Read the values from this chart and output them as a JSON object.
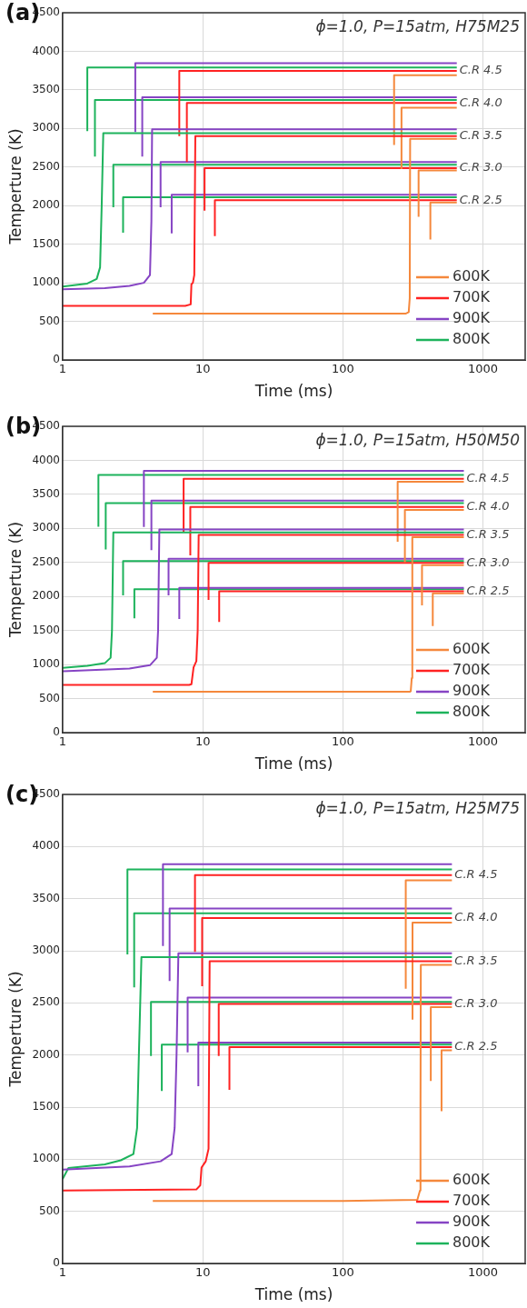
{
  "chart_data": [
    {
      "type": "line",
      "title": "(a)",
      "subtitle": "ϕ=1.0, P=15atm, H75M25",
      "xlabel": "Time (ms)",
      "ylabel": "Temperture (K)",
      "log": "x",
      "grid": true,
      "legend": "bottom right",
      "xlim": [
        1,
        2000
      ],
      "xticks": [
        1,
        10,
        100,
        1000
      ],
      "ylim": [
        0,
        4500
      ],
      "yticks": [
        0,
        500,
        1000,
        1500,
        2000,
        2500,
        3000,
        3500,
        4000,
        4500
      ],
      "annotations": [
        {
          "text": "C.R 4.5",
          "x": 650,
          "y": 3745
        },
        {
          "text": "C.R 4.0",
          "x": 650,
          "y": 3330
        },
        {
          "text": "C.R 3.5",
          "x": 650,
          "y": 2900
        },
        {
          "text": "C.R 3.0",
          "x": 650,
          "y": 2485
        },
        {
          "text": "C.R 2.5",
          "x": 650,
          "y": 2070
        }
      ],
      "series": [
        {
          "name": "600K",
          "color": "#f5883c",
          "x": [
            4.4,
            100,
            280,
            295,
            300,
            302,
            650
          ],
          "values": [
            600,
            600,
            600,
            620,
            800,
            2865,
            2865
          ]
        },
        {
          "name": "700K",
          "color": "#ff2222",
          "x": [
            1,
            7.5,
            8.2,
            8.3,
            8.5,
            8.7,
            8.85,
            650
          ],
          "values": [
            700,
            700,
            720,
            980,
            1000,
            1100,
            2900,
            2900
          ]
        },
        {
          "name": "900K",
          "color": "#8644c4",
          "x": [
            1,
            2,
            3,
            3.8,
            4.2,
            4.3,
            4.35,
            650
          ],
          "values": [
            915,
            930,
            960,
            1000,
            1100,
            1800,
            2990,
            2990
          ]
        },
        {
          "name": "800K",
          "color": "#1db35c",
          "x": [
            1,
            1.5,
            1.75,
            1.85,
            1.9,
            1.95,
            650
          ],
          "values": [
            950,
            990,
            1050,
            1200,
            2000,
            2940,
            2940
          ]
        },
        {
          "color": "#f5883c",
          "x": [
            232,
            232,
            650
          ],
          "values": [
            2785,
            3690,
            3690
          ]
        },
        {
          "color": "#f5883c",
          "x": [
            262,
            262,
            650
          ],
          "values": [
            2475,
            3270,
            3270
          ]
        },
        {
          "color": "#f5883c",
          "x": [
            347,
            347,
            650
          ],
          "values": [
            1855,
            2455,
            2455
          ]
        },
        {
          "color": "#f5883c",
          "x": [
            421,
            421,
            650
          ],
          "values": [
            1560,
            2040,
            2040
          ]
        },
        {
          "color": "#ff2222",
          "x": [
            6.8,
            6.8,
            650
          ],
          "values": [
            2900,
            3745,
            3745
          ]
        },
        {
          "color": "#ff2222",
          "x": [
            7.7,
            7.7,
            650
          ],
          "values": [
            2565,
            3330,
            3330
          ]
        },
        {
          "color": "#ff2222",
          "x": [
            10.3,
            10.3,
            650
          ],
          "values": [
            1935,
            2485,
            2485
          ]
        },
        {
          "color": "#ff2222",
          "x": [
            12.2,
            12.2,
            650
          ],
          "values": [
            1605,
            2070,
            2070
          ]
        },
        {
          "color": "#8644c4",
          "x": [
            3.3,
            3.3,
            650
          ],
          "values": [
            2955,
            3845,
            3845
          ]
        },
        {
          "color": "#8644c4",
          "x": [
            3.7,
            3.7,
            650
          ],
          "values": [
            2635,
            3405,
            3405
          ]
        },
        {
          "color": "#8644c4",
          "x": [
            5.0,
            5.0,
            650
          ],
          "values": [
            1980,
            2565,
            2565
          ]
        },
        {
          "color": "#8644c4",
          "x": [
            6.0,
            6.0,
            650
          ],
          "values": [
            1640,
            2140,
            2140
          ]
        },
        {
          "color": "#1db35c",
          "x": [
            1.5,
            1.5,
            650
          ],
          "values": [
            2965,
            3790,
            3790
          ]
        },
        {
          "color": "#1db35c",
          "x": [
            1.7,
            1.7,
            650
          ],
          "values": [
            2635,
            3370,
            3370
          ]
        },
        {
          "color": "#1db35c",
          "x": [
            2.3,
            2.3,
            650
          ],
          "values": [
            1980,
            2530,
            2530
          ]
        },
        {
          "color": "#1db35c",
          "x": [
            2.7,
            2.7,
            650
          ],
          "values": [
            1650,
            2110,
            2110
          ]
        }
      ]
    },
    {
      "type": "line",
      "title": "(b)",
      "subtitle": "ϕ=1.0, P=15atm, H50M50",
      "xlabel": "Time (ms)",
      "ylabel": "Temperture (K)",
      "log": "x",
      "grid": true,
      "legend": "bottom right",
      "xlim": [
        1,
        2000
      ],
      "xticks": [
        1,
        10,
        100,
        1000
      ],
      "ylim": [
        0,
        4500
      ],
      "yticks": [
        0,
        500,
        1000,
        1500,
        2000,
        2500,
        3000,
        3500,
        4000,
        4500
      ],
      "annotations": [
        {
          "text": "C.R 4.5",
          "x": 730,
          "y": 3730
        },
        {
          "text": "C.R 4.0",
          "x": 730,
          "y": 3315
        },
        {
          "text": "C.R 3.5",
          "x": 730,
          "y": 2905
        },
        {
          "text": "C.R 3.0",
          "x": 730,
          "y": 2495
        },
        {
          "text": "C.R 2.5",
          "x": 730,
          "y": 2075
        }
      ],
      "series": [
        {
          "name": "600K",
          "color": "#f5883c",
          "x": [
            4.4,
            100,
            300,
            305,
            310,
            313,
            730
          ],
          "values": [
            600,
            600,
            600,
            610,
            800,
            2870,
            2870
          ]
        },
        {
          "name": "700K",
          "color": "#ff2222",
          "x": [
            1,
            8,
            8.3,
            8.6,
            9.0,
            9.2,
            9.35,
            730
          ],
          "values": [
            700,
            700,
            710,
            960,
            1050,
            1500,
            2905,
            2905
          ]
        },
        {
          "name": "900K",
          "color": "#8644c4",
          "x": [
            1,
            3,
            4.2,
            4.7,
            4.8,
            4.9,
            730
          ],
          "values": [
            900,
            940,
            990,
            1100,
            1500,
            2985,
            2985
          ]
        },
        {
          "name": "800K",
          "color": "#1db35c",
          "x": [
            1,
            1.5,
            2.0,
            2.2,
            2.25,
            2.3,
            730
          ],
          "values": [
            950,
            980,
            1020,
            1100,
            1500,
            2940,
            2940
          ]
        },
        {
          "color": "#f5883c",
          "x": [
            246,
            246,
            730
          ],
          "values": [
            2805,
            3685,
            3685
          ]
        },
        {
          "color": "#f5883c",
          "x": [
            277,
            277,
            730
          ],
          "values": [
            2500,
            3270,
            3270
          ]
        },
        {
          "color": "#f5883c",
          "x": [
            367,
            367,
            730
          ],
          "values": [
            1870,
            2460,
            2460
          ]
        },
        {
          "color": "#f5883c",
          "x": [
            438,
            438,
            730
          ],
          "values": [
            1565,
            2045,
            2045
          ]
        },
        {
          "color": "#ff2222",
          "x": [
            7.3,
            7.3,
            730
          ],
          "values": [
            2950,
            3730,
            3730
          ]
        },
        {
          "color": "#ff2222",
          "x": [
            8.15,
            8.15,
            730
          ],
          "values": [
            2605,
            3315,
            3315
          ]
        },
        {
          "color": "#ff2222",
          "x": [
            11.0,
            11.0,
            730
          ],
          "values": [
            1950,
            2495,
            2495
          ]
        },
        {
          "color": "#ff2222",
          "x": [
            13.1,
            13.1,
            730
          ],
          "values": [
            1625,
            2075,
            2075
          ]
        },
        {
          "color": "#8644c4",
          "x": [
            3.8,
            3.8,
            730
          ],
          "values": [
            3020,
            3845,
            3845
          ]
        },
        {
          "color": "#8644c4",
          "x": [
            4.3,
            4.3,
            730
          ],
          "values": [
            2680,
            3410,
            3410
          ]
        },
        {
          "color": "#8644c4",
          "x": [
            5.7,
            5.7,
            730
          ],
          "values": [
            2015,
            2555,
            2555
          ]
        },
        {
          "color": "#8644c4",
          "x": [
            6.8,
            6.8,
            730
          ],
          "values": [
            1670,
            2125,
            2125
          ]
        },
        {
          "color": "#1db35c",
          "x": [
            1.8,
            1.8,
            730
          ],
          "values": [
            3025,
            3785,
            3785
          ]
        },
        {
          "color": "#1db35c",
          "x": [
            2.03,
            2.03,
            730
          ],
          "values": [
            2690,
            3370,
            3370
          ]
        },
        {
          "color": "#1db35c",
          "x": [
            2.7,
            2.7,
            730
          ],
          "values": [
            2015,
            2520,
            2520
          ]
        },
        {
          "color": "#1db35c",
          "x": [
            3.25,
            3.25,
            730
          ],
          "values": [
            1680,
            2105,
            2105
          ]
        }
      ]
    },
    {
      "type": "line",
      "title": "(c)",
      "subtitle": "ϕ=1.0, P=15atm, H25M75",
      "xlabel": "Time (ms)",
      "ylabel": "Temperture (K)",
      "log": "x",
      "grid": true,
      "legend": "bottom right",
      "xlim": [
        1,
        2000
      ],
      "xticks": [
        1,
        10,
        100,
        1000
      ],
      "ylim": [
        0,
        4500
      ],
      "yticks": [
        0,
        500,
        1000,
        1500,
        2000,
        2500,
        3000,
        3500,
        4000,
        4500
      ],
      "annotations": [
        {
          "text": "C.R 4.5",
          "x": 600,
          "y": 3725
        },
        {
          "text": "C.R 4.0",
          "x": 600,
          "y": 3315
        },
        {
          "text": "C.R 3.5",
          "x": 600,
          "y": 2900
        },
        {
          "text": "C.R 3.0",
          "x": 600,
          "y": 2490
        },
        {
          "text": "C.R 2.5",
          "x": 600,
          "y": 2075
        }
      ],
      "series": [
        {
          "name": "600K",
          "color": "#f5883c",
          "x": [
            4.4,
            100,
            340,
            355,
            358,
            360,
            600
          ],
          "values": [
            600,
            600,
            610,
            700,
            1500,
            2865,
            2865
          ]
        },
        {
          "name": "700K",
          "color": "#ff2222",
          "x": [
            1,
            9,
            9.6,
            9.8,
            10.5,
            11,
            11.2,
            600
          ],
          "values": [
            700,
            710,
            750,
            920,
            980,
            1100,
            2900,
            2900
          ]
        },
        {
          "name": "900K",
          "color": "#8644c4",
          "x": [
            1,
            3,
            5,
            6,
            6.3,
            6.5,
            6.7,
            600
          ],
          "values": [
            900,
            930,
            980,
            1050,
            1300,
            2000,
            2975,
            2975
          ]
        },
        {
          "name": "800K",
          "color": "#1db35c",
          "x": [
            1,
            1.1,
            2,
            2.6,
            3.2,
            3.4,
            3.5,
            3.65,
            600
          ],
          "values": [
            810,
            915,
            950,
            990,
            1050,
            1300,
            2000,
            2940,
            2940
          ]
        },
        {
          "color": "#f5883c",
          "x": [
            281,
            281,
            600
          ],
          "values": [
            2635,
            3675,
            3675
          ]
        },
        {
          "color": "#f5883c",
          "x": [
            314,
            314,
            600
          ],
          "values": [
            2340,
            3270,
            3270
          ]
        },
        {
          "color": "#f5883c",
          "x": [
            424,
            424,
            600
          ],
          "values": [
            1750,
            2460,
            2460
          ]
        },
        {
          "color": "#f5883c",
          "x": [
            506,
            506,
            600
          ],
          "values": [
            1460,
            2045,
            2045
          ]
        },
        {
          "color": "#ff2222",
          "x": [
            8.8,
            8.8,
            600
          ],
          "values": [
            2990,
            3725,
            3725
          ]
        },
        {
          "color": "#ff2222",
          "x": [
            9.9,
            9.9,
            600
          ],
          "values": [
            2660,
            3315,
            3315
          ]
        },
        {
          "color": "#ff2222",
          "x": [
            13.0,
            13.0,
            600
          ],
          "values": [
            1990,
            2490,
            2490
          ]
        },
        {
          "color": "#ff2222",
          "x": [
            15.5,
            15.5,
            600
          ],
          "values": [
            1665,
            2075,
            2075
          ]
        },
        {
          "color": "#8644c4",
          "x": [
            5.2,
            5.2,
            600
          ],
          "values": [
            3045,
            3830,
            3830
          ]
        },
        {
          "color": "#8644c4",
          "x": [
            5.8,
            5.8,
            600
          ],
          "values": [
            2710,
            3405,
            3405
          ]
        },
        {
          "color": "#8644c4",
          "x": [
            7.8,
            7.8,
            600
          ],
          "values": [
            2025,
            2550,
            2550
          ]
        },
        {
          "color": "#8644c4",
          "x": [
            9.3,
            9.3,
            600
          ],
          "values": [
            1700,
            2120,
            2120
          ]
        },
        {
          "color": "#1db35c",
          "x": [
            2.9,
            2.9,
            600
          ],
          "values": [
            2965,
            3780,
            3780
          ]
        },
        {
          "color": "#1db35c",
          "x": [
            3.24,
            3.24,
            600
          ],
          "values": [
            2650,
            3360,
            3360
          ]
        },
        {
          "color": "#1db35c",
          "x": [
            4.27,
            4.27,
            600
          ],
          "values": [
            1990,
            2510,
            2510
          ]
        },
        {
          "color": "#1db35c",
          "x": [
            5.1,
            5.1,
            600
          ],
          "values": [
            1655,
            2100,
            2100
          ]
        }
      ]
    }
  ]
}
